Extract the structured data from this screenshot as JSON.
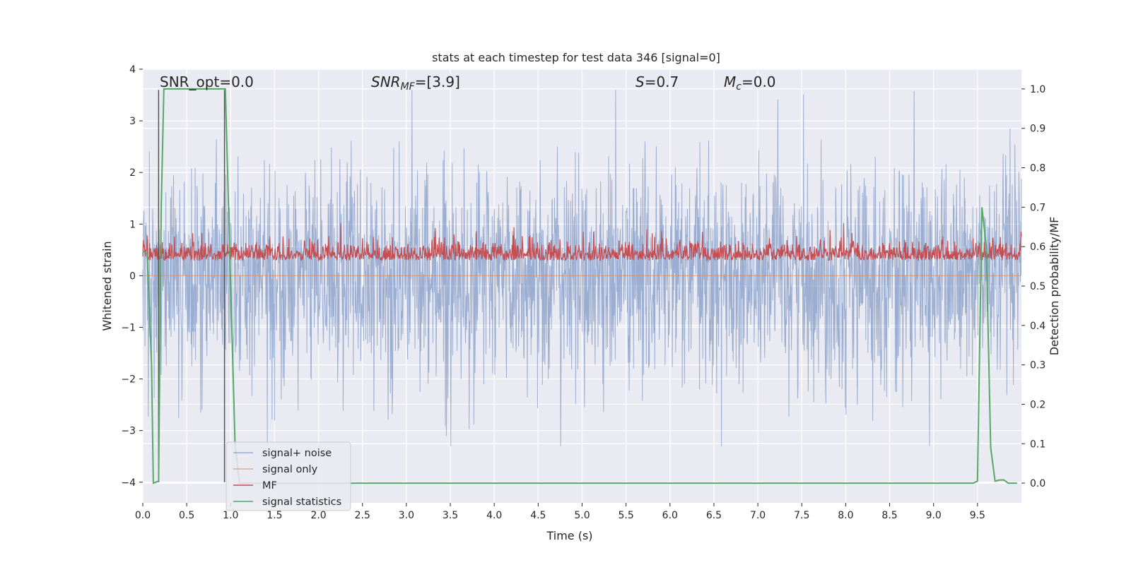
{
  "chart_data": {
    "type": "line",
    "title": "stats at each timestep for test data 346 [signal=0]",
    "xlabel": "Time (s)",
    "ylabel": "Whitened strain",
    "ylabel_right": "Detection probability/MF",
    "xlim": [
      0,
      10
    ],
    "ylim": [
      -4.4,
      4
    ],
    "ylim_right": [
      -0.05,
      1.05
    ],
    "x_ticks": [
      "0.0",
      "0.5",
      "1.0",
      "1.5",
      "2.0",
      "2.5",
      "3.0",
      "3.5",
      "4.0",
      "4.5",
      "5.0",
      "5.5",
      "6.0",
      "6.5",
      "7.0",
      "7.5",
      "8.0",
      "8.5",
      "9.0",
      "9.5"
    ],
    "y_ticks": [
      "4",
      "3",
      "2",
      "1",
      "0",
      "−1",
      "−2",
      "−3",
      "−4"
    ],
    "y_ticks_right": [
      "1.0",
      "0.9",
      "0.8",
      "0.7",
      "0.6",
      "0.5",
      "0.4",
      "0.3",
      "0.2",
      "0.1",
      "0.0"
    ],
    "annotations": {
      "snr_opt": "SNR_opt=0.0",
      "snr_mf_prefix": "SNR",
      "snr_mf_sub": "MF",
      "snr_mf_value": "=[3.9]",
      "s_var": "S",
      "s_value": "=0.7",
      "mc_var": "M",
      "mc_sub": "c",
      "mc_value": "=0.0"
    },
    "grid": true,
    "legend_position": "lower-left",
    "legend": [
      "signal+ noise",
      "signal only",
      "MF",
      "signal statistics"
    ],
    "colors": {
      "noise": "#4c72b0",
      "signal": "#dd8452",
      "mf": "#c44e52",
      "stat": "#55a868",
      "background": "#eaeaf2"
    },
    "series": [
      {
        "name": "signal+ noise",
        "axis": "left",
        "note": "dense whitened-noise trace, approx. range -3.3 to 3.6",
        "envelope_min": -3.3,
        "envelope_max": 3.6
      },
      {
        "name": "signal only",
        "axis": "left",
        "x": [
          0,
          10
        ],
        "y": [
          0,
          0
        ]
      },
      {
        "name": "MF",
        "axis": "right",
        "note": "matched-filter output, approx. range 0.53 to 0.66",
        "envelope_min": 0.53,
        "envelope_max": 0.66
      },
      {
        "name": "signal statistics",
        "axis": "right",
        "x": [
          0.0,
          0.05,
          0.1,
          0.12,
          0.18,
          0.21,
          0.24,
          0.3,
          0.5,
          0.7,
          0.9,
          0.94,
          1.0,
          1.05,
          1.1,
          1.5,
          2.0,
          3.0,
          4.0,
          5.0,
          6.0,
          7.0,
          8.0,
          9.0,
          9.3,
          9.45,
          9.5,
          9.55,
          9.6,
          9.65,
          9.7,
          9.75,
          9.8,
          9.85,
          9.9,
          9.95
        ],
        "y": [
          0.59,
          0.58,
          0.3,
          0.0,
          0.005,
          0.7,
          1.0,
          1.0,
          1.0,
          1.0,
          1.0,
          1.0,
          0.5,
          0.1,
          0.0,
          0.0,
          0.0,
          0.0,
          0.0,
          0.0,
          0.0,
          0.0,
          0.0,
          0.0,
          0.0,
          0.0,
          0.005,
          0.7,
          0.6,
          0.09,
          0.005,
          0.008,
          0.008,
          0.0,
          0.0,
          0.0
        ]
      }
    ],
    "vertical_lines": [
      {
        "x": 0.18,
        "y_from": -4,
        "y_to": 3.6,
        "color": "#555555"
      },
      {
        "x": 0.93,
        "y_from": -4,
        "y_to": 3.6,
        "color": "#555555"
      }
    ]
  }
}
